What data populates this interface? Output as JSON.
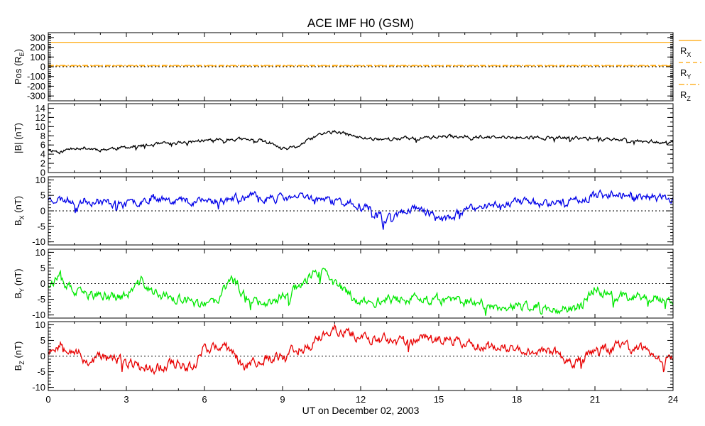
{
  "chart_data": {
    "type": "line",
    "title": "ACE IMF H0 (GSM)",
    "xlabel": "UT on December 02, 2003",
    "x_ticks": [
      "0",
      "3",
      "6",
      "9",
      "12",
      "15",
      "18",
      "21",
      "24"
    ],
    "xlim": [
      0,
      24
    ],
    "panels": [
      {
        "id": "pos",
        "ylabel": {
          "base": "Pos (R",
          "sub": "E",
          "end": ")"
        },
        "ylim": [
          -350,
          350
        ],
        "y_ticks": [
          "300",
          "200",
          "100",
          "0",
          "-100",
          "-200",
          "-300"
        ],
        "y_tick_values": [
          300,
          200,
          100,
          0,
          -100,
          -200,
          -300
        ],
        "zero_line": true,
        "series": [
          {
            "name": "R",
            "sub": "X",
            "color": "#FFA500",
            "style": "solid",
            "values": [
              [
                0,
                250
              ],
              [
                24,
                250
              ]
            ]
          },
          {
            "name": "R",
            "sub": "Y",
            "color": "#FFA500",
            "style": "dash",
            "values": [
              [
                0,
                8
              ],
              [
                24,
                8
              ]
            ]
          },
          {
            "name": "R",
            "sub": "Z",
            "color": "#FFA500",
            "style": "dashdot",
            "values": [
              [
                0,
                14
              ],
              [
                24,
                14
              ]
            ]
          }
        ]
      },
      {
        "id": "bmag",
        "ylabel": {
          "base": "|B| (nT)",
          "sub": "",
          "end": ""
        },
        "ylim": [
          0,
          15
        ],
        "y_ticks": [
          "14",
          "12",
          "10",
          "8",
          "6",
          "4",
          "2",
          "0"
        ],
        "y_tick_values": [
          14,
          12,
          10,
          8,
          6,
          4,
          2,
          0
        ],
        "zero_line": false,
        "series": [
          {
            "name": "|B|",
            "color": "#000000",
            "noise": 0.35,
            "seed": 11,
            "values": [
              [
                0,
                5
              ],
              [
                0.5,
                4.5
              ],
              [
                1,
                5.5
              ],
              [
                2,
                5
              ],
              [
                3,
                5.5
              ],
              [
                4,
                6
              ],
              [
                5,
                6.5
              ],
              [
                6,
                7
              ],
              [
                7,
                7.3
              ],
              [
                8,
                7
              ],
              [
                8.5,
                6.5
              ],
              [
                9,
                5
              ],
              [
                9.5,
                5.5
              ],
              [
                10,
                7
              ],
              [
                10.5,
                8.5
              ],
              [
                11,
                8.8
              ],
              [
                11.5,
                8.3
              ],
              [
                12,
                7.5
              ],
              [
                13,
                7.3
              ],
              [
                14,
                7.5
              ],
              [
                15,
                7.8
              ],
              [
                16,
                7.9
              ],
              [
                17,
                7.6
              ],
              [
                18,
                7.6
              ],
              [
                19,
                7.6
              ],
              [
                20,
                7.5
              ],
              [
                21,
                7.4
              ],
              [
                22,
                7.2
              ],
              [
                23,
                6.9
              ],
              [
                24,
                6.5
              ]
            ]
          }
        ]
      },
      {
        "id": "bx",
        "ylabel": {
          "base": "B",
          "sub": "X",
          "end": " (nT)"
        },
        "ylim": [
          -11,
          11
        ],
        "y_ticks": [
          "10",
          "5",
          "0",
          "-5",
          "-10"
        ],
        "y_tick_values": [
          10,
          5,
          0,
          -5,
          -10
        ],
        "zero_line": true,
        "series": [
          {
            "name": "B_X",
            "color": "#0000E8",
            "noise": 1.2,
            "seed": 23,
            "values": [
              [
                0,
                4
              ],
              [
                1,
                3.5
              ],
              [
                2,
                3
              ],
              [
                3,
                2
              ],
              [
                4,
                4.5
              ],
              [
                5,
                3.5
              ],
              [
                6,
                3
              ],
              [
                7,
                4
              ],
              [
                8,
                4.5
              ],
              [
                9,
                4
              ],
              [
                10,
                4.5
              ],
              [
                11,
                3
              ],
              [
                12,
                2
              ],
              [
                12.5,
                0
              ],
              [
                13,
                -2
              ],
              [
                13.5,
                -1
              ],
              [
                14,
                1
              ],
              [
                14.5,
                0
              ],
              [
                15,
                -3
              ],
              [
                15.5,
                -2
              ],
              [
                16,
                0
              ],
              [
                17,
                2
              ],
              [
                18,
                3
              ],
              [
                19,
                2.5
              ],
              [
                20,
                3
              ],
              [
                21,
                5
              ],
              [
                22,
                6
              ],
              [
                23,
                4.5
              ],
              [
                24,
                4
              ]
            ]
          }
        ]
      },
      {
        "id": "by",
        "ylabel": {
          "base": "B",
          "sub": "Y",
          "end": " (nT)"
        },
        "ylim": [
          -11,
          11
        ],
        "y_ticks": [
          "10",
          "5",
          "0",
          "-5",
          "-10"
        ],
        "y_tick_values": [
          10,
          5,
          0,
          -5,
          -10
        ],
        "zero_line": true,
        "series": [
          {
            "name": "B_Y",
            "color": "#00E800",
            "noise": 1.4,
            "seed": 37,
            "values": [
              [
                0,
                0
              ],
              [
                0.5,
                2
              ],
              [
                1,
                -3
              ],
              [
                2,
                -4
              ],
              [
                3,
                -4
              ],
              [
                3.6,
                1
              ],
              [
                4,
                -3
              ],
              [
                5,
                -5
              ],
              [
                6,
                -7
              ],
              [
                6.5,
                -6
              ],
              [
                7,
                2
              ],
              [
                7.5,
                -3
              ],
              [
                8,
                -6
              ],
              [
                9,
                -4
              ],
              [
                10,
                2
              ],
              [
                10.5,
                4
              ],
              [
                11,
                0
              ],
              [
                11.5,
                -3
              ],
              [
                12,
                -6
              ],
              [
                13,
                -5
              ],
              [
                14,
                -5
              ],
              [
                15,
                -5
              ],
              [
                16,
                -6
              ],
              [
                17,
                -7
              ],
              [
                18,
                -7.5
              ],
              [
                19,
                -7.5
              ],
              [
                20,
                -8
              ],
              [
                20.5,
                -7
              ],
              [
                21,
                -1
              ],
              [
                21.5,
                -4
              ],
              [
                22,
                -4
              ],
              [
                23,
                -4
              ],
              [
                24,
                -5
              ]
            ]
          }
        ]
      },
      {
        "id": "bz",
        "ylabel": {
          "base": "B",
          "sub": "Z",
          "end": " (nT)"
        },
        "ylim": [
          -11,
          11
        ],
        "y_ticks": [
          "10",
          "5",
          "0",
          "-5",
          "-10"
        ],
        "y_tick_values": [
          10,
          5,
          0,
          -5,
          -10
        ],
        "zero_line": true,
        "series": [
          {
            "name": "B_Z",
            "color": "#E80000",
            "noise": 1.5,
            "seed": 53,
            "values": [
              [
                0,
                2
              ],
              [
                0.5,
                4
              ],
              [
                1,
                2
              ],
              [
                1.5,
                -2
              ],
              [
                2,
                0
              ],
              [
                3,
                -2
              ],
              [
                4,
                -4
              ],
              [
                5,
                -2
              ],
              [
                5.5,
                -4
              ],
              [
                6,
                3
              ],
              [
                7,
                2
              ],
              [
                7.5,
                -3
              ],
              [
                8,
                -2
              ],
              [
                9,
                1
              ],
              [
                10,
                3
              ],
              [
                10.5,
                6
              ],
              [
                11,
                8.5
              ],
              [
                11.5,
                7.5
              ],
              [
                12,
                6
              ],
              [
                13,
                5
              ],
              [
                14,
                5
              ],
              [
                15,
                6
              ],
              [
                16,
                4
              ],
              [
                17,
                3
              ],
              [
                18,
                2
              ],
              [
                19,
                1.5
              ],
              [
                20,
                0
              ],
              [
                20.2,
                -3
              ],
              [
                21,
                2
              ],
              [
                22,
                3
              ],
              [
                23,
                2
              ],
              [
                23.5,
                -1
              ],
              [
                24,
                -1
              ]
            ]
          }
        ]
      }
    ]
  }
}
